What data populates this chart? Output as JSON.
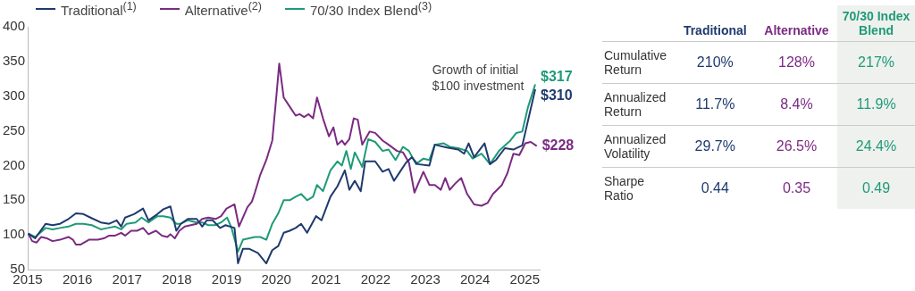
{
  "chart_data": [
    {
      "type": "line",
      "legend": "top",
      "grid": false,
      "xlim": [
        2015,
        2025.3
      ],
      "xticks": [
        2015,
        2016,
        2017,
        2018,
        2019,
        2020,
        2021,
        2022,
        2023,
        2024,
        2025
      ],
      "ylim": [
        50,
        400
      ],
      "yticks": [
        50,
        100,
        150,
        200,
        250,
        300,
        350,
        400
      ],
      "marker": "none",
      "line_style": "solid",
      "annotations": [
        "Growth of initial $100 investment"
      ],
      "series": [
        {
          "name": "Traditional$^{(1)}$",
          "color": "#1f3a6e",
          "x": [
            2015.01,
            2015.15,
            2015.36,
            2015.5,
            2015.65,
            2015.82,
            2015.97,
            2016.12,
            2016.29,
            2016.47,
            2016.64,
            2016.79,
            2016.88,
            2016.96,
            2017.14,
            2017.32,
            2017.43,
            2017.61,
            2017.73,
            2017.87,
            2017.99,
            2018.08,
            2018.22,
            2018.4,
            2018.51,
            2018.6,
            2018.72,
            2018.87,
            2018.98,
            2019.16,
            2019.23,
            2019.33,
            2019.45,
            2019.63,
            2019.8,
            2019.92,
            2020.04,
            2020.15,
            2020.27,
            2020.39,
            2020.5,
            2020.62,
            2020.8,
            2020.91,
            2021.09,
            2021.23,
            2021.38,
            2021.47,
            2021.58,
            2021.7,
            2021.79,
            2021.99,
            2022.14,
            2022.26,
            2022.37,
            2022.49,
            2022.61,
            2022.73,
            2022.84,
            2023.08,
            2023.19,
            2023.43,
            2023.66,
            2023.78,
            2023.87,
            2023.98,
            2024.19,
            2024.3,
            2024.42,
            2024.6,
            2024.77,
            2024.95,
            2025.21
          ],
          "values": [
            102,
            95,
            116,
            114,
            116,
            123,
            131,
            130,
            124,
            118,
            116,
            121,
            112,
            125,
            130,
            138,
            121,
            130,
            137,
            141,
            106,
            116,
            123,
            123,
            112,
            121,
            121,
            110,
            114,
            110,
            59,
            80,
            80,
            74,
            59,
            78,
            84,
            103,
            106,
            110,
            116,
            103,
            127,
            121,
            155,
            170,
            193,
            165,
            178,
            163,
            206,
            206,
            191,
            195,
            178,
            191,
            204,
            212,
            202,
            200,
            230,
            226,
            223,
            217,
            232,
            212,
            232,
            202,
            208,
            225,
            223,
            229,
            310
          ],
          "value_labels": [
            null,
            null,
            null,
            null,
            null,
            null,
            null,
            null,
            null,
            null,
            null,
            null,
            null,
            null,
            null,
            null,
            null,
            null,
            null,
            null,
            null,
            null,
            null,
            null,
            null,
            null,
            null,
            null,
            null,
            null,
            null,
            null,
            null,
            null,
            null,
            null,
            null,
            null,
            null,
            null,
            null,
            null,
            null,
            null,
            null,
            null,
            null,
            null,
            null,
            null,
            null,
            null,
            null,
            null,
            null,
            null,
            null,
            null,
            null,
            null,
            null,
            null,
            null,
            null,
            null,
            null,
            null,
            null,
            null,
            null,
            null,
            null,
            "$310"
          ]
        },
        {
          "name": "Alternative$^{(2)}$",
          "color": "#7b2a83",
          "x": [
            2015.01,
            2015.09,
            2015.18,
            2015.27,
            2015.39,
            2015.5,
            2015.65,
            2015.82,
            2015.91,
            2015.97,
            2016.06,
            2016.23,
            2016.41,
            2016.53,
            2016.64,
            2016.76,
            2016.88,
            2016.96,
            2017.08,
            2017.2,
            2017.32,
            2017.43,
            2017.58,
            2017.7,
            2017.81,
            2017.87,
            2017.96,
            2018.05,
            2018.16,
            2018.4,
            2018.51,
            2018.63,
            2018.78,
            2018.89,
            2019.0,
            2019.16,
            2019.25,
            2019.42,
            2019.51,
            2019.57,
            2019.68,
            2019.8,
            2019.92,
            2020.0,
            2020.06,
            2020.15,
            2020.27,
            2020.39,
            2020.47,
            2020.56,
            2020.65,
            2020.74,
            2020.82,
            2020.94,
            2021.06,
            2021.15,
            2021.23,
            2021.32,
            2021.38,
            2021.47,
            2021.56,
            2021.64,
            2021.73,
            2021.88,
            2021.99,
            2022.14,
            2022.26,
            2022.43,
            2022.55,
            2022.67,
            2022.78,
            2022.96,
            2023.08,
            2023.19,
            2023.31,
            2023.4,
            2023.49,
            2023.6,
            2023.72,
            2023.84,
            2023.98,
            2024.13,
            2024.25,
            2024.36,
            2024.54,
            2024.65,
            2024.77,
            2024.89,
            2025.01,
            2025.12,
            2025.24
          ],
          "values": [
            102,
            91,
            89,
            97,
            95,
            91,
            93,
            97,
            93,
            86,
            86,
            93,
            93,
            95,
            99,
            99,
            103,
            99,
            106,
            106,
            110,
            101,
            106,
            99,
            97,
            101,
            95,
            106,
            112,
            116,
            123,
            125,
            123,
            127,
            138,
            144,
            112,
            140,
            148,
            161,
            187,
            208,
            236,
            298,
            347,
            298,
            285,
            272,
            274,
            270,
            274,
            268,
            298,
            268,
            242,
            255,
            230,
            236,
            230,
            238,
            268,
            266,
            230,
            249,
            247,
            236,
            230,
            221,
            219,
            204,
            161,
            191,
            172,
            172,
            165,
            182,
            165,
            174,
            182,
            159,
            144,
            142,
            146,
            159,
            172,
            189,
            217,
            215,
            232,
            234,
            228
          ],
          "value_labels": [
            null,
            null,
            null,
            null,
            null,
            null,
            null,
            null,
            null,
            null,
            null,
            null,
            null,
            null,
            null,
            null,
            null,
            null,
            null,
            null,
            null,
            null,
            null,
            null,
            null,
            null,
            null,
            null,
            null,
            null,
            null,
            null,
            null,
            null,
            null,
            null,
            null,
            null,
            null,
            null,
            null,
            null,
            null,
            null,
            null,
            null,
            null,
            null,
            null,
            null,
            null,
            null,
            null,
            null,
            null,
            null,
            null,
            null,
            null,
            null,
            null,
            null,
            null,
            null,
            null,
            null,
            null,
            null,
            null,
            null,
            null,
            null,
            null,
            null,
            null,
            null,
            null,
            null,
            null,
            null,
            null,
            null,
            null,
            null,
            null,
            null,
            null,
            null,
            null,
            null,
            "$228"
          ]
        },
        {
          "name": "70/30 Index Blend$^{(3)}$",
          "color": "#1f9a78",
          "x": [
            2015.01,
            2015.15,
            2015.36,
            2015.5,
            2015.65,
            2015.82,
            2015.97,
            2016.12,
            2016.29,
            2016.47,
            2016.61,
            2016.76,
            2016.88,
            2016.99,
            2017.17,
            2017.29,
            2017.43,
            2017.61,
            2017.73,
            2017.87,
            2017.99,
            2018.08,
            2018.22,
            2018.4,
            2018.51,
            2018.63,
            2018.77,
            2018.89,
            2019.01,
            2019.1,
            2019.23,
            2019.33,
            2019.57,
            2019.68,
            2019.8,
            2019.92,
            2020.04,
            2020.15,
            2020.27,
            2020.39,
            2020.5,
            2020.62,
            2020.74,
            2020.82,
            2020.94,
            2021.09,
            2021.23,
            2021.32,
            2021.41,
            2021.5,
            2021.58,
            2021.73,
            2021.85,
            2021.99,
            2022.14,
            2022.26,
            2022.4,
            2022.55,
            2022.67,
            2022.81,
            2022.96,
            2023.08,
            2023.19,
            2023.37,
            2023.49,
            2023.66,
            2023.84,
            2023.95,
            2024.13,
            2024.3,
            2024.48,
            2024.71,
            2024.83,
            2024.95,
            2025.06,
            2025.21
          ],
          "values": [
            102,
            97,
            110,
            108,
            110,
            112,
            116,
            116,
            114,
            108,
            110,
            112,
            108,
            116,
            118,
            125,
            118,
            127,
            127,
            125,
            116,
            116,
            121,
            118,
            118,
            114,
            114,
            118,
            125,
            110,
            76,
            93,
            97,
            97,
            93,
            116,
            131,
            150,
            150,
            155,
            159,
            150,
            155,
            172,
            163,
            193,
            206,
            200,
            221,
            195,
            219,
            198,
            238,
            234,
            221,
            223,
            208,
            227,
            221,
            202,
            210,
            208,
            230,
            232,
            227,
            225,
            221,
            210,
            217,
            202,
            221,
            236,
            247,
            249,
            283,
            317
          ],
          "value_labels": [
            null,
            null,
            null,
            null,
            null,
            null,
            null,
            null,
            null,
            null,
            null,
            null,
            null,
            null,
            null,
            null,
            null,
            null,
            null,
            null,
            null,
            null,
            null,
            null,
            null,
            null,
            null,
            null,
            null,
            null,
            null,
            null,
            null,
            null,
            null,
            null,
            null,
            null,
            null,
            null,
            null,
            null,
            null,
            null,
            null,
            null,
            null,
            null,
            null,
            null,
            null,
            null,
            null,
            null,
            null,
            null,
            null,
            null,
            null,
            null,
            null,
            null,
            null,
            null,
            null,
            null,
            null,
            null,
            null,
            null,
            null,
            null,
            null,
            null,
            null,
            "$317"
          ]
        }
      ]
    },
    {
      "type": "other",
      "categories": [
        "Traditional",
        "Alternative",
        "70/30 Index Blend"
      ],
      "colors": [
        "#1f3a6e",
        "#7b2a83",
        "#1f9a78"
      ],
      "y_categories": [
        "Cumulative Return",
        "Annualized Return",
        "Annualized Volatility",
        "Sharpe Ratio"
      ],
      "cell_labels": [
        [
          "210%",
          "128%",
          "217%"
        ],
        [
          "11.7%",
          "8.4%",
          "11.9%"
        ],
        [
          "29.7%",
          "26.5%",
          "24.4%"
        ],
        [
          "0.44",
          "0.35",
          "0.49"
        ]
      ]
    }
  ]
}
